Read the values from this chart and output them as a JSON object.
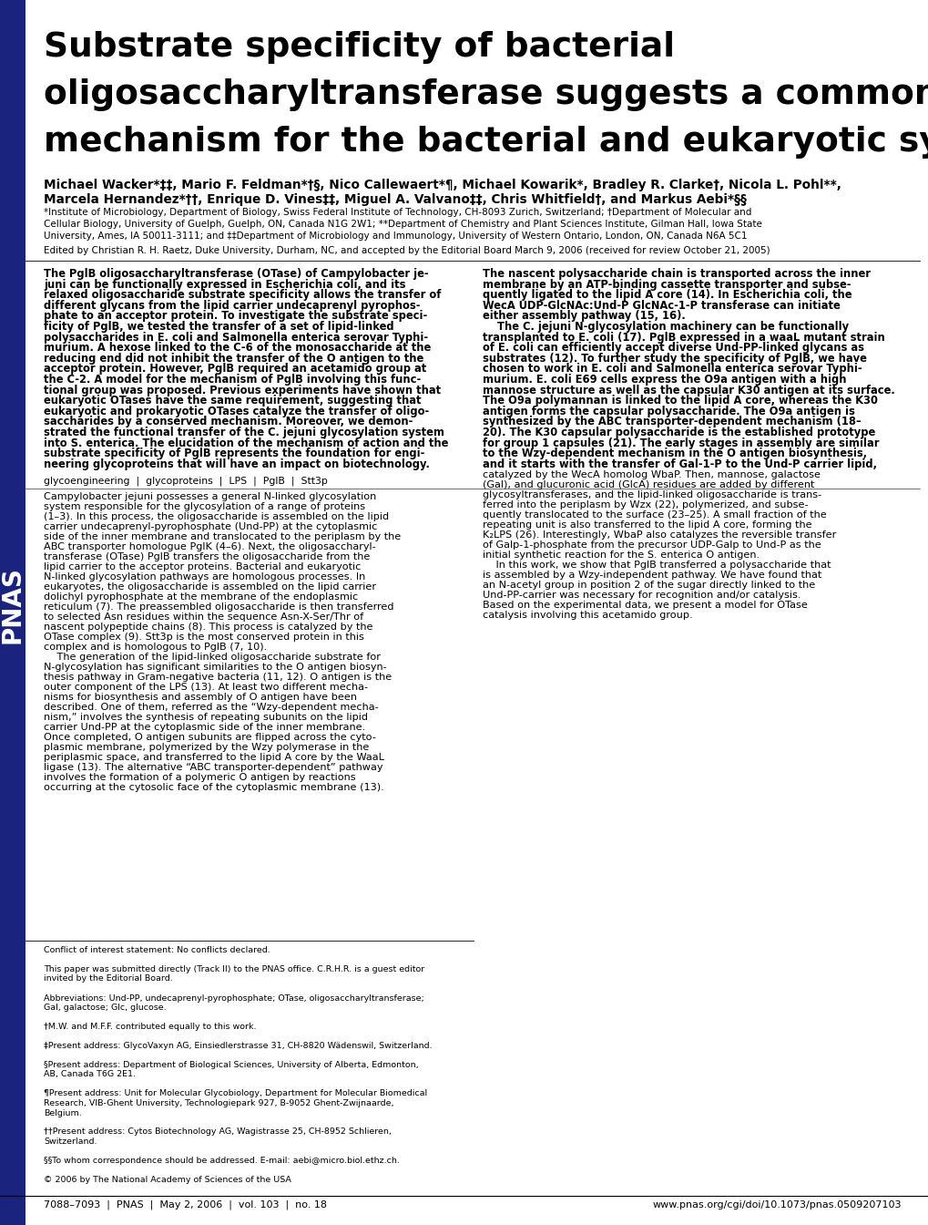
{
  "title_line1": "Substrate specificity of bacterial",
  "title_line2": "oligosaccharyltransferase suggests a common transfer",
  "title_line3": "mechanism for the bacterial and eukaryotic systems",
  "author_line1": "Michael Wacker*‡‡, Mario F. Feldman*†§, Nico Callewaert*¶, Michael Kowarik*, Bradley R. Clarke†, Nicola L. Pohl**,",
  "author_line2": "Marcela Hernandez*††, Enrique D. Vines‡‡, Miguel A. Valvano‡‡, Chris Whitfield†, and Markus Aebi*§§",
  "affil_line1": "*Institute of Microbiology, Department of Biology, Swiss Federal Institute of Technology, CH-8093 Zurich, Switzerland; †Department of Molecular and",
  "affil_line2": "Cellular Biology, University of Guelph, Guelph, ON, Canada N1G 2W1; **Department of Chemistry and Plant Sciences Institute, Gilman Hall, Iowa State",
  "affil_line3": "University, Ames, IA 50011-3111; and ‡‡Department of Microbiology and Immunology, University of Western Ontario, London, ON, Canada N6A 5C1",
  "edited_by": "Edited by Christian R. H. Raetz, Duke University, Durham, NC, and accepted by the Editorial Board March 9, 2006 (received for review October 21, 2005)",
  "abstract_left_lines": [
    "The PglB oligosaccharyltransferase (OTase) of Campylobacter je-",
    "juni can be functionally expressed in Escherichia coli, and its",
    "relaxed oligosaccharide substrate specificity allows the transfer of",
    "different glycans from the lipid carrier undecaprenyl pyrophos-",
    "phate to an acceptor protein. To investigate the substrate speci-",
    "ficity of PglB, we tested the transfer of a set of lipid-linked",
    "polysaccharides in E. coli and Salmonella enterica serovar Typhi-",
    "murium. A hexose linked to the C-6 of the monosaccharide at the",
    "reducing end did not inhibit the transfer of the O antigen to the",
    "acceptor protein. However, PglB required an acetamido group at",
    "the C-2. A model for the mechanism of PglB involving this func-",
    "tional group was proposed. Previous experiments have shown that",
    "eukaryotic OTases have the same requirement, suggesting that",
    "eukaryotic and prokaryotic OTases catalyze the transfer of oligo-",
    "saccharides by a conserved mechanism. Moreover, we demon-",
    "strated the functional transfer of the C. jejuni glycosylation system",
    "into S. enterica. The elucidation of the mechanism of action and the",
    "substrate specificity of PglB represents the foundation for engi-",
    "neering glycoproteins that will have an impact on biotechnology."
  ],
  "abstract_right_lines": [
    "The nascent polysaccharide chain is transported across the inner",
    "membrane by an ATP-binding cassette transporter and subse-",
    "quently ligated to the lipid A core (14). In Escherichia coli, the",
    "WecA UDP-GlcNAc:Und-P GlcNAc-1-P transferase can initiate",
    "either assembly pathway (15, 16).",
    "    The C. jejuni N-glycosylation machinery can be functionally",
    "transplanted to E. coli (17). PglB expressed in a waaL mutant strain",
    "of E. coli can efficiently accept diverse Und-PP-linked glycans as",
    "substrates (12). To further study the specificity of PglB, we have",
    "chosen to work in E. coli and Salmonella enterica serovar Typhi-",
    "murium. E. coli E69 cells express the O9a antigen with a high",
    "mannose structure as well as the capsular K30 antigen at its surface.",
    "The O9a polymannan is linked to the lipid A core, whereas the K30",
    "antigen forms the capsular polysaccharide. The O9a antigen is",
    "synthesized by the ABC transporter-dependent mechanism (18–",
    "20). The K30 capsular polysaccharide is the established prototype",
    "for group 1 capsules (21). The early stages in assembly are similar",
    "to the Wzy-dependent mechanism in the O antigen biosynthesis,",
    "and it starts with the transfer of Gal-1-P to the Und-P carrier lipid,"
  ],
  "keywords": "glycoengineering  |  glycoproteins  |  LPS  |  PglB  |  Stt3p",
  "body_left_lines": [
    "Campylobacter jejuni possesses a general N-linked glycosylation",
    "system responsible for the glycosylation of a range of proteins",
    "(1–3). In this process, the oligosaccharide is assembled on the lipid",
    "carrier undecaprenyl-pyrophosphate (Und-PP) at the cytoplasmic",
    "side of the inner membrane and translocated to the periplasm by the",
    "ABC transporter homologue PglK (4–6). Next, the oligosaccharyl-",
    "transferase (OTase) PglB transfers the oligosaccharide from the",
    "lipid carrier to the acceptor proteins. Bacterial and eukaryotic",
    "N-linked glycosylation pathways are homologous processes. In",
    "eukaryotes, the oligosaccharide is assembled on the lipid carrier",
    "dolichyl pyrophosphate at the membrane of the endoplasmic",
    "reticulum (7). The preassembled oligosaccharide is then transferred",
    "to selected Asn residues within the sequence Asn-X-Ser/Thr of",
    "nascent polypeptide chains (8). This process is catalyzed by the",
    "OTase complex (9). Stt3p is the most conserved protein in this",
    "complex and is homologous to PglB (7, 10).",
    "    The generation of the lipid-linked oligosaccharide substrate for",
    "N-glycosylation has significant similarities to the O antigen biosyn-",
    "thesis pathway in Gram-negative bacteria (11, 12). O antigen is the",
    "outer component of the LPS (13). At least two different mecha-",
    "nisms for biosynthesis and assembly of O antigen have been",
    "described. One of them, referred as the “Wzy-dependent mecha-",
    "nism,” involves the synthesis of repeating subunits on the lipid",
    "carrier Und-PP at the cytoplasmic side of the inner membrane.",
    "Once completed, O antigen subunits are flipped across the cyto-",
    "plasmic membrane, polymerized by the Wzy polymerase in the",
    "periplasmic space, and transferred to the lipid A core by the WaaL",
    "ligase (13). The alternative “ABC transporter-dependent” pathway",
    "involves the formation of a polymeric O antigen by reactions",
    "occurring at the cytosolic face of the cytoplasmic membrane (13)."
  ],
  "body_right_lines": [
    "catalyzed by the WecA homolog WbaP. Then, mannose, galactose",
    "(Gal), and glucuronic acid (GlcA) residues are added by different",
    "glycosyltransferases, and the lipid-linked oligosaccharide is trans-",
    "ferred into the periplasm by Wzx (22), polymerized, and subse-",
    "quently translocated to the surface (23–25). A small fraction of the",
    "repeating unit is also transferred to the lipid A core, forming the",
    "K₂LPS (26). Interestingly, WbaP also catalyzes the reversible transfer",
    "of Galp-1-phosphate from the precursor UDP-Galp to Und-P as the",
    "initial synthetic reaction for the S. enterica O antigen.",
    "    In this work, we show that PglB transferred a polysaccharide that",
    "is assembled by a Wzy-independent pathway. We have found that",
    "an N-acetyl group in position 2 of the sugar directly linked to the",
    "Und-PP-carrier was necessary for recognition and/or catalysis.",
    "Based on the experimental data, we present a model for OTase",
    "catalysis involving this acetamido group."
  ],
  "footer_lines": [
    "Conflict of interest statement: No conflicts declared.",
    "",
    "This paper was submitted directly (Track II) to the PNAS office. C.R.H.R. is a guest editor",
    "invited by the Editorial Board.",
    "",
    "Abbreviations: Und-PP, undecaprenyl-pyrophosphate; OTase, oligosaccharyltransferase;",
    "Gal, galactose; Glc, glucose.",
    "",
    "†M.W. and M.F.F. contributed equally to this work.",
    "",
    "‡Present address: GlycoVaxyn AG, Einsiedlerstrasse 31, CH-8820 Wädenswil, Switzerland.",
    "",
    "§Present address: Department of Biological Sciences, University of Alberta, Edmonton,",
    "AB, Canada T6G 2E1.",
    "",
    "¶Present address: Unit for Molecular Glycobiology, Department for Molecular Biomedical",
    "Research, VIB-Ghent University, Technologiepark 927, B-9052 Ghent-Zwijnaarde,",
    "Belgium.",
    "",
    "††Present address: Cytos Biotechnology AG, Wagistrasse 25, CH-8952 Schlieren,",
    "Switzerland.",
    "",
    "§§To whom correspondence should be addressed. E-mail: aebi@micro.biol.ethz.ch.",
    "",
    "© 2006 by The National Academy of Sciences of the USA"
  ],
  "footer_bottom_left": "7088–7093  |  PNAS  |  May 2, 2006  |  vol. 103  |  no. 18",
  "footer_bottom_right": "www.pnas.org/cgi/doi/10.1073/pnas.0509207103",
  "sidebar_color": "#1a237e",
  "background_color": "#ffffff"
}
